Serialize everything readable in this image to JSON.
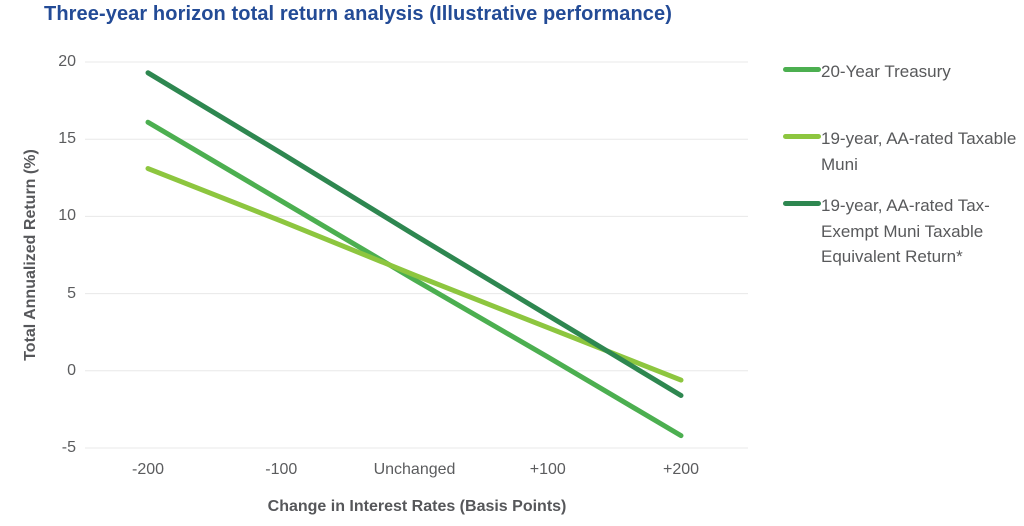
{
  "title": "Three-year horizon total return analysis (Illustrative performance)",
  "colors": {
    "title_blue": "#234b96",
    "axis_text": "#5b5c5e",
    "axis_title_text": "#56575a",
    "legend_text": "#58595b",
    "gridline": "#e8e8e8",
    "background": "#ffffff",
    "series_treasury": "#4caf50",
    "series_taxable_muni": "#8dc63f",
    "series_tax_exempt_muni": "#2e8750"
  },
  "chart_data": {
    "type": "line",
    "title": "Three-year horizon total return analysis (Illustrative performance)",
    "categories": [
      "-200",
      "-100",
      "Unchanged",
      "+100",
      "+200"
    ],
    "series": [
      {
        "name": "20-Year Treasury",
        "color": "#4caf50",
        "values": [
          16.1,
          11.0,
          5.9,
          0.9,
          -4.2
        ]
      },
      {
        "name": "19-year, AA-rated Taxable Muni",
        "color": "#8dc63f",
        "values": [
          13.1,
          9.7,
          6.2,
          2.8,
          -0.6
        ]
      },
      {
        "name": "19-year, AA-rated Tax-Exempt Muni Taxable Equivalent Return*",
        "color": "#2e8750",
        "values": [
          19.3,
          14.1,
          8.8,
          3.6,
          -1.6
        ]
      }
    ],
    "xlabel": "Change in Interest Rates (Basis Points)",
    "ylabel": "Total Annualized Return (%)",
    "y_ticks": [
      20,
      15,
      10,
      5,
      0,
      -5
    ],
    "ylim": [
      -5,
      20
    ],
    "grid": true,
    "legend_position": "right"
  }
}
